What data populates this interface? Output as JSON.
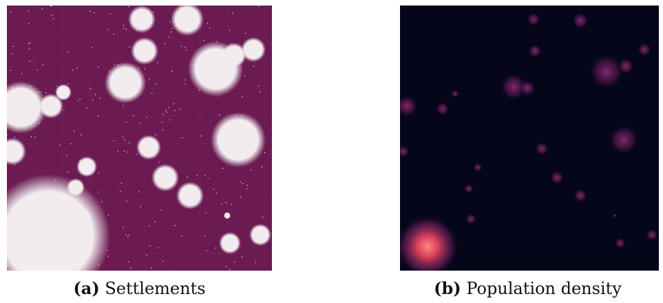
{
  "colors": {
    "settlement_background": "#6b1b52",
    "settlement_fill": "#f2ecef",
    "density_background": "#06061a",
    "density_low": "#6a1e5e",
    "density_high": "#f0506e"
  },
  "captions": {
    "a": {
      "label": "(a)",
      "text": "Settlements"
    },
    "b": {
      "label": "(b)",
      "text": "Population density"
    }
  }
}
